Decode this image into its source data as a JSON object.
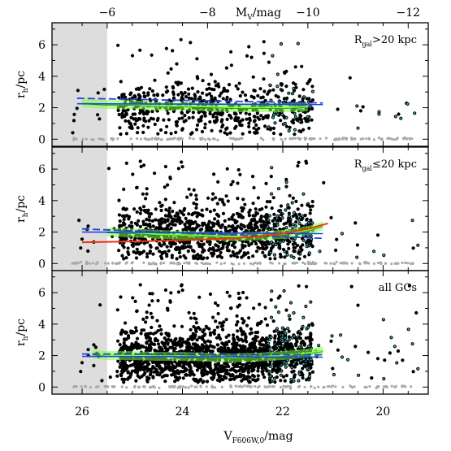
{
  "chart_data": [
    {
      "type": "scatter",
      "panel_label": "R_gal>20 kpc",
      "label_main": "R",
      "label_sub": "gal",
      "label_rest": ">20 kpc",
      "ylabel_main": "r",
      "ylabel_sub": "h",
      "ylabel_rest": "/pc",
      "xlim": [
        26.6,
        19.1
      ],
      "ylim": [
        -0.45,
        7.4
      ],
      "yticks": [
        0,
        2,
        4,
        6
      ],
      "excluded_region_x": [
        26.6,
        25.5
      ],
      "median_trend": {
        "x": [
          26.0,
          25.5,
          25.0,
          24.5,
          24.0,
          23.5,
          23.0,
          22.5,
          22.0,
          21.5
        ],
        "y": [
          2.3,
          2.2,
          2.2,
          2.1,
          2.1,
          2.05,
          2.0,
          2.0,
          2.0,
          2.05
        ]
      },
      "fit_line": {
        "x": [
          26.1,
          21.2
        ],
        "y": [
          2.6,
          2.3
        ]
      },
      "fit_line_2": {
        "x": [
          26.1,
          21.2
        ],
        "y": [
          2.25,
          2.2
        ]
      }
    },
    {
      "type": "scatter",
      "panel_label": "R_gal≤20 kpc",
      "label_main": "R",
      "label_sub": "gal",
      "label_rest": "≤20 kpc",
      "ylabel_main": "r",
      "ylabel_sub": "h",
      "ylabel_rest": "/pc",
      "xlim": [
        26.6,
        19.1
      ],
      "ylim": [
        -0.45,
        7.4
      ],
      "yticks": [
        0,
        2,
        4,
        6
      ],
      "excluded_region_x": [
        26.6,
        25.5
      ],
      "median_trend": {
        "x": [
          25.5,
          25.0,
          24.5,
          24.0,
          23.5,
          23.0,
          22.5,
          22.0,
          21.5,
          21.2
        ],
        "y": [
          2.0,
          1.95,
          1.85,
          1.8,
          1.75,
          1.7,
          1.75,
          1.85,
          2.1,
          2.4
        ]
      },
      "fit_line": {
        "x": [
          26.0,
          21.2
        ],
        "y": [
          2.2,
          1.6
        ]
      },
      "fit_line_2": {
        "x": [
          26.0,
          21.2
        ],
        "y": [
          2.0,
          1.9
        ]
      },
      "fit_curve": {
        "x": [
          26.0,
          25.0,
          24.0,
          23.0,
          22.5,
          22.0,
          21.5,
          21.1
        ],
        "y": [
          1.35,
          1.4,
          1.48,
          1.6,
          1.72,
          1.9,
          2.2,
          2.55
        ]
      }
    },
    {
      "type": "scatter",
      "panel_label": "all GCs",
      "ylabel_main": "r",
      "ylabel_sub": "h",
      "ylabel_rest": "/pc",
      "xlim": [
        26.6,
        19.1
      ],
      "ylim": [
        -0.45,
        7.4
      ],
      "yticks": [
        0,
        2,
        4,
        6
      ],
      "excluded_region_x": [
        26.6,
        25.5
      ],
      "median_trend": {
        "x": [
          25.8,
          25.5,
          25.0,
          24.5,
          24.0,
          23.5,
          23.0,
          22.5,
          22.0,
          21.5,
          21.2
        ],
        "y": [
          2.1,
          2.0,
          2.0,
          1.95,
          1.95,
          1.9,
          1.85,
          1.9,
          2.0,
          2.15,
          2.3
        ]
      },
      "fit_line": {
        "x": [
          26.0,
          21.2
        ],
        "y": [
          2.1,
          2.05
        ]
      },
      "fit_line_2": {
        "x": [
          26.0,
          21.2
        ],
        "y": [
          1.95,
          1.9
        ]
      }
    }
  ],
  "x_axis": {
    "label_main": "V",
    "label_sub": "F606W,0",
    "label_rest": "/mag",
    "ticks": [
      26,
      24,
      22,
      20
    ],
    "tick_labels": [
      "26",
      "24",
      "22",
      "20"
    ]
  },
  "top_axis": {
    "label_main": "M",
    "label_sub": "V",
    "label_rest": "/mag",
    "ticks": [
      -6,
      -8,
      -10,
      -12
    ],
    "tick_labels": [
      "−6",
      "−8",
      "−10",
      "−12"
    ],
    "distance_modulus": 31.5
  },
  "colors": {
    "points": "#000000",
    "upper_limits": "#aaaaaa",
    "excluded_region": "#dddddd",
    "trend_band": "#7cff3a",
    "trend_line": "#1f8a1f",
    "fit_line": "#2244dd",
    "fit_curve": "#ee3311",
    "bright_points": "#33b5b5"
  }
}
